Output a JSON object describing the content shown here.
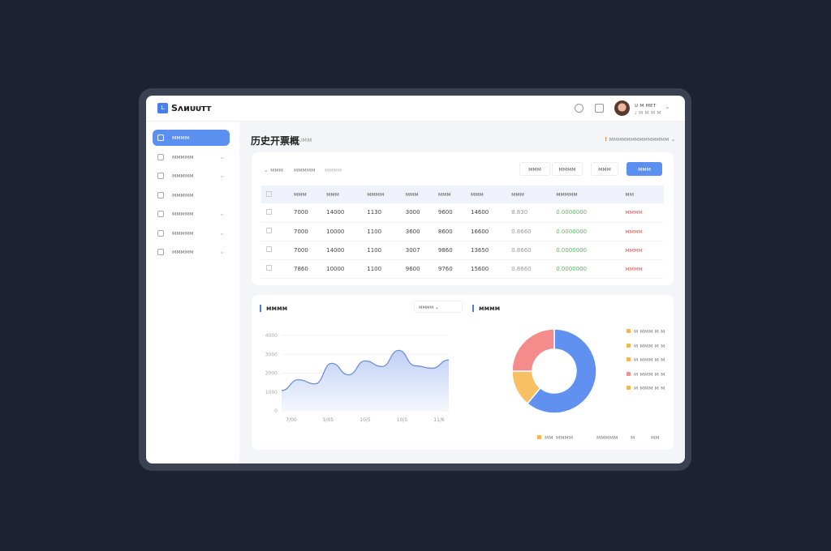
{
  "app": {
    "logo": "ʟ",
    "name": "Sᴧᴎᴜᴜᴛᴛ"
  },
  "user": {
    "name": "ᴜ ᴍ ᴍᴇᴛ",
    "role": "ᴊ ᴍ ᴍ ᴍ ᴍ"
  },
  "sidebar": {
    "items": [
      {
        "label": "ᴍᴍᴍᴍ",
        "active": true,
        "chevron": false
      },
      {
        "label": "ᴍᴍᴍᴍᴍ",
        "chevron": true
      },
      {
        "label": "ᴍᴍᴍᴍᴍ",
        "chevron": true
      },
      {
        "label": "ᴍᴍᴍᴍᴍ",
        "chevron": false
      },
      {
        "label": "ᴍᴍᴍᴍᴍ",
        "chevron": true
      },
      {
        "label": "ᴍᴍᴍᴍᴍ",
        "chevron": true
      },
      {
        "label": "ᴍᴍᴍᴍᴍ",
        "chevron": true
      }
    ]
  },
  "page": {
    "title": "历史开票概",
    "subtitle": "ᴊᴍᴍ",
    "notice": "ᴍᴍᴍᴍᴍᴍᴍᴍᴍᴍᴍᴍᴍᴍ",
    "notice_badge": "!"
  },
  "filters": [
    "ᴍᴍᴍ",
    "ᴍᴍᴍᴍᴍ",
    "ᴍᴍᴍᴍ"
  ],
  "buttons": {
    "b1": "ᴍᴍᴍ",
    "b2": "ᴍᴍᴍᴍ",
    "b3": "ᴍᴍᴍ",
    "primary": "ᴍᴍᴍ"
  },
  "table": {
    "headers": [
      "ᴍᴍᴍ",
      "ᴍᴍᴍ",
      "ᴍᴍᴍᴍ",
      "ᴍᴍᴍ",
      "ᴍᴍᴍ",
      "ᴍᴍᴍ",
      "ᴍᴍᴍ",
      "ᴍᴍᴍᴍᴍ",
      "ᴍᴍ"
    ],
    "rows": [
      [
        "7000",
        "14000",
        "1130",
        "3000",
        "9600",
        "14600",
        "8.830",
        "0.0000000",
        "ᴍᴍᴍᴍ"
      ],
      [
        "7000",
        "10000",
        "1100",
        "3600",
        "8600",
        "16600",
        "0.8660",
        "0.0000000",
        "ᴍᴍᴍᴍ"
      ],
      [
        "7000",
        "14000",
        "1100",
        "3007",
        "9860",
        "13650",
        "0.8660",
        "0.0000000",
        "ᴍᴍᴍᴍ"
      ],
      [
        "7860",
        "10000",
        "1100",
        "9600",
        "9760",
        "15600",
        "0.8660",
        "0.0000000",
        "ᴍᴍᴍᴍ"
      ]
    ]
  },
  "colors": {
    "accent": "#5b8ff0",
    "blue": "#6191f0",
    "yellow": "#f8bf63",
    "red": "#f48c8c"
  },
  "chart_data": [
    {
      "type": "area",
      "title": "ᴍᴍᴍᴍ",
      "select": "ᴍᴍᴍᴍ",
      "ylim": [
        0,
        4000
      ],
      "yticks": [
        "0",
        "1000",
        "2000",
        "3000",
        "4000"
      ],
      "xticks": [
        "7/00",
        "5/05",
        "10/5",
        "10/5",
        "11/6"
      ],
      "x": [
        0,
        1,
        2,
        3,
        4,
        5,
        6,
        7,
        8,
        9,
        10
      ],
      "values": [
        1080,
        1650,
        1430,
        2520,
        1910,
        2650,
        2350,
        3210,
        2390,
        2260,
        2700
      ]
    },
    {
      "type": "pie",
      "title": "ᴍᴍᴍᴍ",
      "values": [
        61,
        14,
        25
      ],
      "colors": [
        "#6191f0",
        "#f8bf63",
        "#f48c8c"
      ],
      "legend": [
        "ᴍ ᴍᴍᴍ ᴍ ᴍ",
        "ᴍ ᴍᴍᴍ ᴍ ᴍ",
        "ᴍ ᴍᴍᴍ ᴍ ᴍ",
        "ᴍ ᴍᴍᴍ ᴍ ᴍ",
        "ᴍ ᴍᴍᴍ ᴍ ᴍ"
      ],
      "legend_colors": [
        "#f3b94f",
        "#f3b94f",
        "#f3b94f",
        "#f48c8c",
        "#f3b94f"
      ],
      "footer": [
        "ᴍᴍ",
        "ᴍᴍᴍᴍ",
        "ᴍᴍᴍᴍᴍ",
        "ᴍ",
        "ᴍᴍ"
      ]
    }
  ]
}
